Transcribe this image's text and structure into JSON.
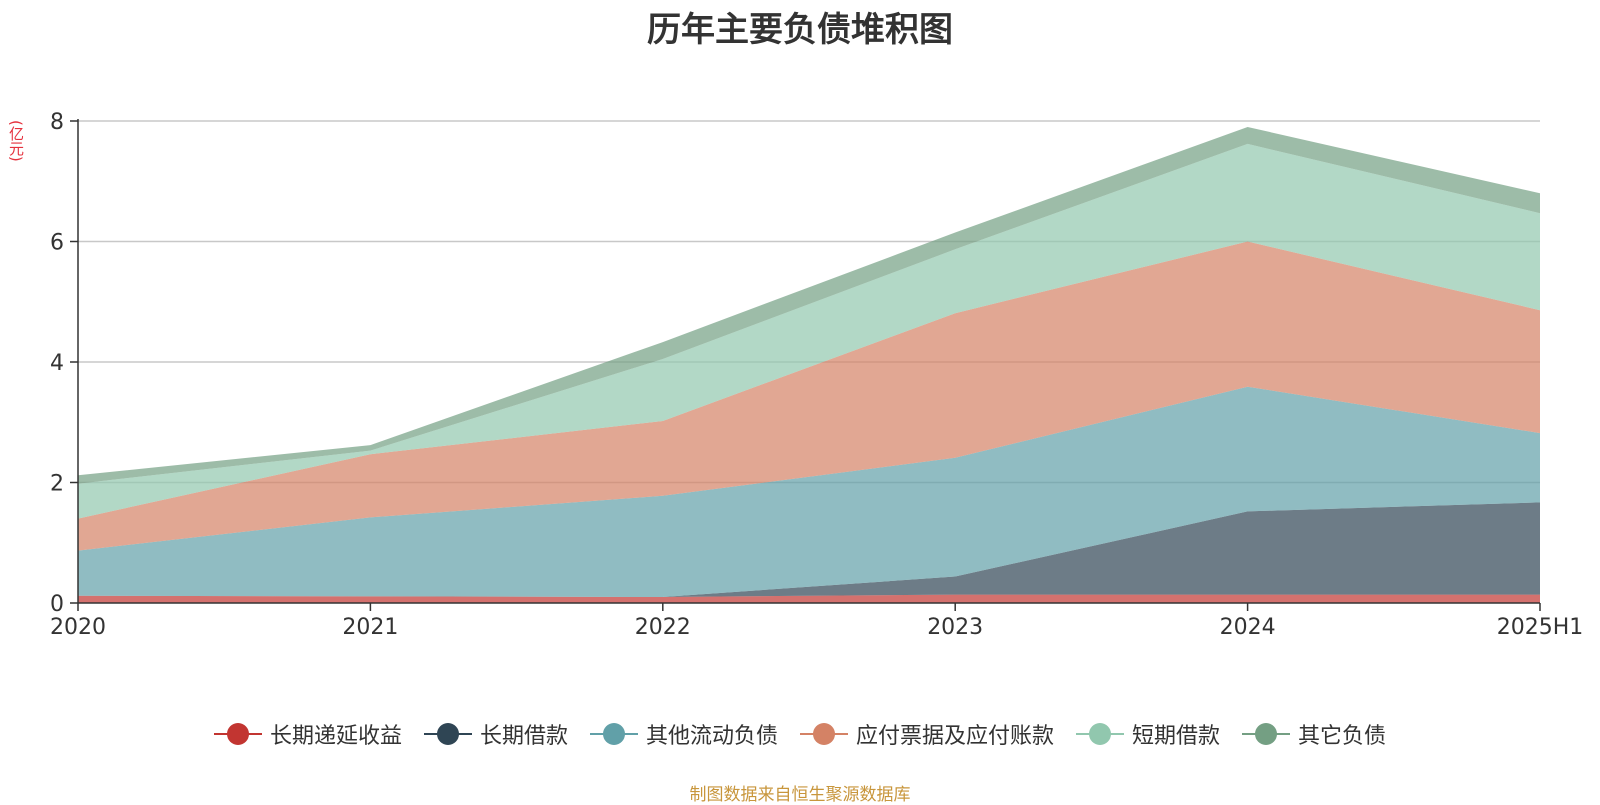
{
  "chart_data": {
    "type": "area",
    "stacked": true,
    "title": "历年主要负债堆积图",
    "ylabel": "(亿元)",
    "categories": [
      "2020",
      "2021",
      "2022",
      "2023",
      "2024",
      "2025H1"
    ],
    "ylim": [
      0,
      8
    ],
    "yticks": [
      0,
      2,
      4,
      6,
      8
    ],
    "grid": true,
    "legend_position": "bottom",
    "series": [
      {
        "name": "长期递延收益",
        "color": "#c23531",
        "values": [
          0.12,
          0.11,
          0.1,
          0.14,
          0.14,
          0.14
        ]
      },
      {
        "name": "长期借款",
        "color": "#2f4554",
        "values": [
          0.0,
          0.0,
          0.0,
          0.3,
          1.38,
          1.53
        ]
      },
      {
        "name": "其他流动负债",
        "color": "#61a0a8",
        "values": [
          0.75,
          1.31,
          1.68,
          1.97,
          2.07,
          1.15
        ]
      },
      {
        "name": "应付票据及应付账款",
        "color": "#d48265",
        "values": [
          0.53,
          1.05,
          1.24,
          2.4,
          2.41,
          2.04
        ]
      },
      {
        "name": "短期借款",
        "color": "#91c7ae",
        "values": [
          0.58,
          0.06,
          1.03,
          1.06,
          1.62,
          1.61
        ]
      },
      {
        "name": "其它负债",
        "color": "#749f83",
        "values": [
          0.14,
          0.09,
          0.28,
          0.28,
          0.28,
          0.33
        ]
      }
    ]
  },
  "source_note": "制图数据来自恒生聚源数据库"
}
